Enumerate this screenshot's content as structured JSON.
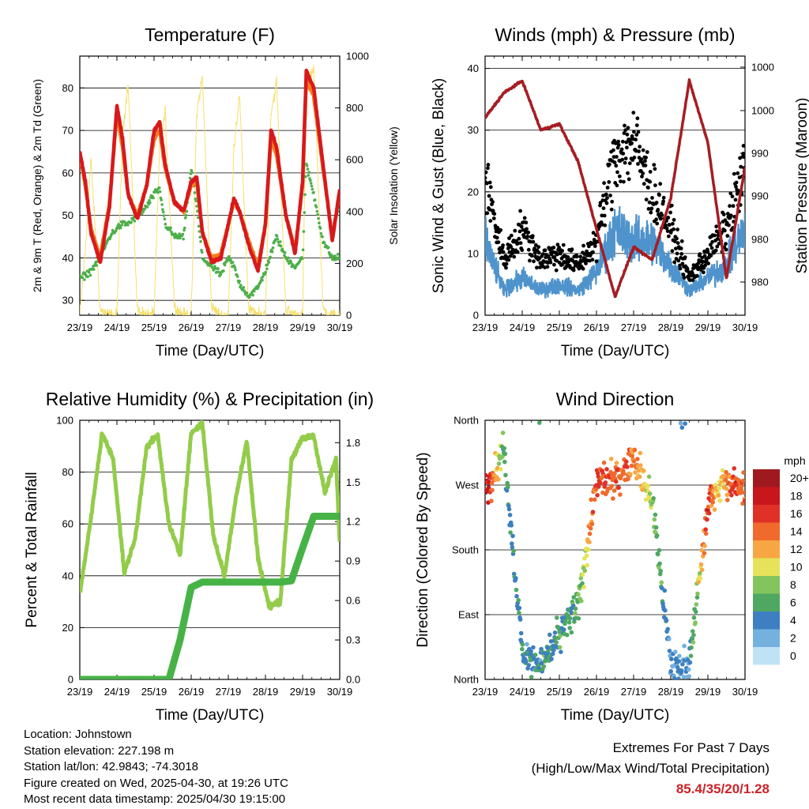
{
  "info": {
    "location": "Location: Johnstown",
    "elevation": "Station elevation: 227.198 m",
    "latlon": "Station lat/lon: 42.9843; -74.3018",
    "created": "Figure created on Wed, 2025-04-30, at 19:26 UTC",
    "recent": "Most recent data timestamp: 2025/04/30 19:15:00"
  },
  "extremes": {
    "title": "Extremes For Past 7 Days",
    "subtitle": "(High/Low/Max Wind/Total Precipitation)",
    "values": "85.4/35/20/1.28"
  },
  "colors": {
    "temp_2m": "#d7191c",
    "temp_9m": "#f47c20",
    "dewpoint": "#4daf4a",
    "solar": "#f5e06e",
    "wind": "#4f93cc",
    "gust": "#000000",
    "pressure": "#a51d23",
    "rh": "#93cc4a",
    "precip": "#47b347"
  },
  "chart_data": [
    {
      "type": "line",
      "title": "Temperature (F)",
      "xlabel": "Time (Day/UTC)",
      "ylabel": "2m & 9m T (Red, Orange) & 2m Td (Green)",
      "y2label": "Solar Insolation (Yellow)",
      "x_ticks": [
        "23/19",
        "24/19",
        "25/19",
        "26/19",
        "27/19",
        "28/19",
        "29/19",
        "30/19"
      ],
      "y_ticks": [
        "30",
        "40",
        "50",
        "60",
        "70",
        "80"
      ],
      "y2_ticks": [
        "0",
        "200",
        "400",
        "600",
        "800",
        "1000"
      ],
      "ylim": [
        26.5,
        87.5
      ],
      "y2lim": [
        0,
        1000
      ],
      "grid": true,
      "x": [
        0,
        0.15,
        0.3,
        0.55,
        0.8,
        1.0,
        1.15,
        1.3,
        1.55,
        1.8,
        2.0,
        2.15,
        2.3,
        2.55,
        2.8,
        3.0,
        3.15,
        3.3,
        3.55,
        3.8,
        4.0,
        4.15,
        4.3,
        4.55,
        4.8,
        5.0,
        5.15,
        5.3,
        5.55,
        5.8,
        6.0,
        6.1,
        6.3,
        6.55,
        6.8,
        7.0
      ],
      "series": [
        {
          "name": "2m T",
          "values": [
            65,
            58,
            46,
            39,
            52,
            76,
            68,
            55,
            49,
            57,
            70,
            72,
            62,
            53,
            51,
            58,
            59,
            46,
            39,
            40,
            48,
            54,
            51,
            43,
            37,
            48,
            70,
            66,
            50,
            41,
            58,
            84,
            80,
            62,
            44,
            56
          ]
        },
        {
          "name": "9m T",
          "values": [
            64,
            57,
            47,
            40,
            53,
            74,
            66,
            55,
            50,
            57,
            68,
            70,
            61,
            53,
            51,
            57,
            58,
            46,
            40,
            41,
            48,
            53,
            51,
            44,
            38,
            48,
            68,
            64,
            50,
            42,
            57,
            82,
            78,
            61,
            45,
            55
          ]
        },
        {
          "name": "2m Td",
          "values": [
            35,
            36,
            37,
            40,
            45,
            47,
            48,
            48,
            50,
            52,
            55,
            56,
            48,
            45,
            45,
            61,
            52,
            40,
            38,
            36,
            40,
            38,
            34,
            31,
            33,
            37,
            41,
            45,
            40,
            38,
            40,
            62,
            55,
            44,
            40,
            40
          ]
        },
        {
          "name": "Solar",
          "values": [
            0,
            250,
            600,
            20,
            0,
            0,
            700,
            900,
            20,
            0,
            0,
            650,
            780,
            30,
            0,
            0,
            780,
            920,
            30,
            0,
            0,
            650,
            850,
            20,
            0,
            0,
            780,
            900,
            20,
            0,
            0,
            870,
            960,
            20,
            0,
            0
          ]
        }
      ]
    },
    {
      "type": "scatter",
      "title": "Winds (mph) & Pressure (mb)",
      "xlabel": "Time (Day/UTC)",
      "ylabel": "Sonic Wind & Gust (Blue, Black)",
      "y2label": "Station Pressure (Maroon)",
      "x_ticks": [
        "23/19",
        "24/19",
        "25/19",
        "26/19",
        "27/19",
        "28/19",
        "29/19",
        "30/19"
      ],
      "y_ticks": [
        "0",
        "10",
        "20",
        "30",
        "40"
      ],
      "y2_ticks": [
        "980",
        "980",
        "990",
        "990",
        "1000",
        "1000"
      ],
      "ylim": [
        0,
        42
      ],
      "grid": true,
      "x": [
        0,
        0.5,
        1.0,
        1.5,
        2.0,
        2.5,
        3.0,
        3.5,
        4.0,
        4.5,
        5.0,
        5.5,
        6.0,
        6.5,
        7.0
      ],
      "series": [
        {
          "name": "Sonic Wind",
          "values": [
            12,
            4,
            6,
            4,
            5,
            4,
            7,
            14,
            12,
            12,
            8,
            4,
            6,
            8,
            14
          ]
        },
        {
          "name": "Gust",
          "values": [
            22,
            9,
            14,
            9,
            10,
            8,
            12,
            26,
            28,
            20,
            14,
            6,
            10,
            14,
            24
          ]
        },
        {
          "name": "Station Pressure",
          "values": [
            32,
            36,
            38,
            30,
            31,
            25,
            14,
            3,
            11,
            9,
            19,
            38,
            28,
            6,
            24
          ]
        }
      ]
    },
    {
      "type": "line",
      "title": "Relative Humidity (%) & Precipitation (in)",
      "xlabel": "Time (Day/UTC)",
      "ylabel": "Percent & Total Rainfall",
      "x_ticks": [
        "23/19",
        "24/19",
        "25/19",
        "26/19",
        "27/19",
        "28/19",
        "29/19",
        "30/19"
      ],
      "y_ticks": [
        "0",
        "20",
        "40",
        "60",
        "80",
        "100"
      ],
      "y2_ticks": [
        "0.0",
        "0.3",
        "0.6",
        "0.9",
        "1.2",
        "1.5",
        "1.8"
      ],
      "ylim": [
        0,
        100
      ],
      "y2lim": [
        0,
        1.97
      ],
      "grid": true,
      "x": [
        0,
        0.3,
        0.6,
        0.9,
        1.2,
        1.5,
        1.8,
        2.1,
        2.4,
        2.7,
        3.0,
        3.3,
        3.6,
        3.9,
        4.2,
        4.5,
        4.8,
        5.1,
        5.4,
        5.7,
        6.0,
        6.3,
        6.6,
        6.9,
        7.0
      ],
      "series": [
        {
          "name": "RH",
          "values": [
            33,
            62,
            95,
            85,
            41,
            55,
            90,
            94,
            60,
            48,
            95,
            99,
            55,
            40,
            70,
            92,
            47,
            28,
            30,
            85,
            93,
            94,
            72,
            85,
            53
          ]
        },
        {
          "name": "Precip",
          "values": [
            0,
            0,
            0,
            0,
            0,
            0,
            0,
            0,
            0,
            0.3,
            0.7,
            0.74,
            0.74,
            0.74,
            0.74,
            0.74,
            0.74,
            0.74,
            0.74,
            0.75,
            1.0,
            1.24,
            1.24,
            1.24,
            1.24
          ]
        }
      ]
    },
    {
      "type": "scatter",
      "title": "Wind Direction",
      "xlabel": "Time (Day/UTC)",
      "ylabel": "Direction (Colored By Speed)",
      "x_ticks": [
        "23/19",
        "24/19",
        "25/19",
        "26/19",
        "27/19",
        "28/19",
        "29/19",
        "30/19"
      ],
      "y_ticks": [
        "North",
        "East",
        "South",
        "West",
        "North"
      ],
      "ylim": [
        0,
        360
      ],
      "grid": true,
      "legend_title": "mph",
      "legend_labels": [
        "20+",
        "18",
        "16",
        "14",
        "12",
        "10",
        "8",
        "6",
        "4",
        "2",
        "0"
      ],
      "legend_colors": [
        "#9e1a1e",
        "#c8161d",
        "#e03127",
        "#ef6a2c",
        "#f8a644",
        "#e6e35a",
        "#84c45e",
        "#4ea862",
        "#3d7fc0",
        "#74b1df",
        "#bfe3f5"
      ],
      "x": [
        0.1,
        0.5,
        1.0,
        1.5,
        2.0,
        2.5,
        3.0,
        3.5,
        4.0,
        4.5,
        5.0,
        5.5,
        6.0,
        6.3,
        6.7,
        7.0
      ],
      "series": [
        {
          "name": "Direction",
          "values": [
            270,
            320,
            40,
            20,
            60,
            100,
            270,
            280,
            310,
            250,
            20,
            20,
            240,
            270,
            270,
            265
          ]
        },
        {
          "name": "Speed",
          "values": [
            18,
            6,
            4,
            5,
            5,
            6,
            16,
            14,
            14,
            8,
            3,
            3,
            16,
            10,
            16,
            14
          ]
        }
      ]
    }
  ]
}
